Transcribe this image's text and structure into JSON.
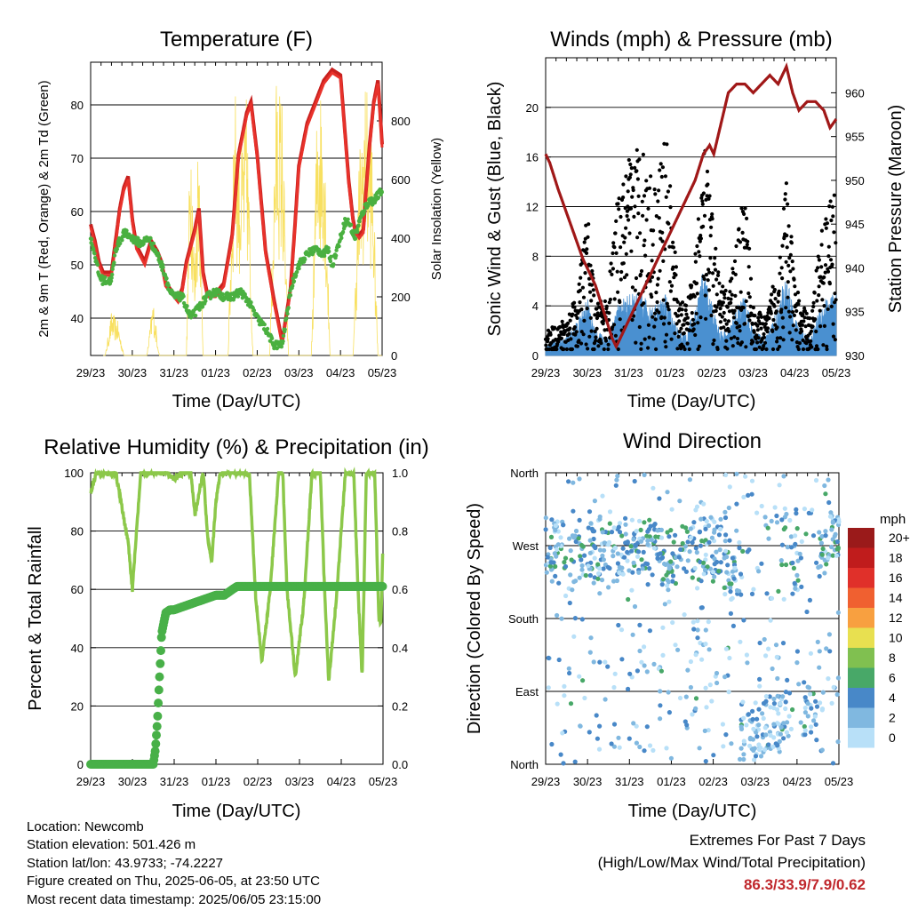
{
  "footer": {
    "location": "Location: Newcomb",
    "elevation": "Station elevation: 501.426 m",
    "latlon": "Station lat/lon: 43.9733; -74.2227",
    "created": "Figure created on Thu, 2025-06-05, at 23:50 UTC",
    "recent": "Most recent data timestamp: 2025/06/05 23:15:00",
    "extremes_title": "Extremes For Past 7 Days",
    "extremes_subtitle": "(High/Low/Max Wind/Total Precipitation)",
    "extremes_values": "86.3/33.9/7.9/0.62"
  },
  "colors": {
    "temp2m": "#e8322b",
    "temp9m": "#c8201e",
    "dewpoint": "#4ab040",
    "solar": "#f8e060",
    "gust": "#000000",
    "wind": "#4a90d0",
    "pressure": "#a01818",
    "rh": "#8cc84a",
    "precip": "#48b048",
    "extremes": "#c0282d"
  },
  "chart_data": [
    {
      "type": "line",
      "title": "Temperature (F)",
      "xlabel": "Time (Day/UTC)",
      "ylabel": "2m & 9m T (Red, Orange) & 2m Td (Green)",
      "y2label": "Solar Insolation (Yellow)",
      "xticks": [
        "29/23",
        "30/23",
        "31/23",
        "01/23",
        "02/23",
        "03/23",
        "04/23",
        "05/23"
      ],
      "xlim": [
        0,
        7
      ],
      "ylim": [
        33,
        88
      ],
      "yticks": [
        40,
        50,
        60,
        70,
        80
      ],
      "y2lim": [
        0,
        1000
      ],
      "y2ticks": [
        0,
        200,
        400,
        600,
        800
      ],
      "grid": true,
      "series": [
        {
          "key": "temperature",
          "x": [
            0,
            0.1,
            0.2,
            0.3,
            0.5,
            0.6,
            0.7,
            0.8,
            0.9,
            1.0,
            1.1,
            1.3,
            1.45,
            1.6,
            1.7,
            1.8,
            1.9,
            2.0,
            2.1,
            2.2,
            2.3,
            2.5,
            2.6,
            2.7,
            2.8,
            3.0,
            3.2,
            3.4,
            3.55,
            3.75,
            3.85,
            4.0,
            4.2,
            4.4,
            4.6,
            4.8,
            4.9,
            5.0,
            5.2,
            5.4,
            5.6,
            5.8,
            6.0,
            6.1,
            6.2,
            6.3,
            6.35,
            6.45,
            6.55,
            6.6,
            6.7,
            6.8,
            6.9,
            7.0
          ],
          "y": [
            57,
            54,
            50,
            48,
            48,
            54,
            60,
            64,
            66,
            58,
            53,
            50,
            54,
            52,
            50,
            46,
            45,
            44,
            43,
            45,
            50,
            56,
            60,
            48,
            44,
            44,
            46,
            55,
            70,
            78,
            80,
            70,
            52,
            43,
            35,
            45,
            56,
            68,
            76,
            80,
            84,
            86,
            85,
            75,
            65,
            58,
            56,
            55,
            56,
            62,
            72,
            80,
            84,
            72
          ]
        },
        {
          "key": "dewpoint",
          "x": [
            0,
            0.1,
            0.2,
            0.3,
            0.5,
            0.6,
            0.8,
            1.0,
            1.2,
            1.4,
            1.6,
            1.8,
            1.9,
            2.0,
            2.2,
            2.3,
            2.4,
            2.5,
            2.6,
            2.8,
            3.0,
            3.2,
            3.4,
            3.6,
            3.8,
            4.0,
            4.2,
            4.4,
            4.6,
            4.8,
            4.9,
            5.0,
            5.2,
            5.4,
            5.6,
            5.7,
            5.8,
            6.0,
            6.1,
            6.2,
            6.3,
            6.35,
            6.45,
            6.6,
            6.7,
            6.8,
            6.9,
            7.0
          ],
          "y": [
            55,
            52,
            48,
            47,
            47,
            53,
            56,
            55,
            54,
            55,
            52,
            48,
            45,
            44,
            44,
            42,
            40,
            41,
            42,
            44,
            45,
            44,
            44,
            45,
            43,
            40,
            38,
            35,
            35,
            45,
            48,
            50,
            52,
            53,
            52,
            53,
            50,
            55,
            58,
            58,
            56,
            55,
            58,
            61,
            62,
            62,
            63,
            64
          ]
        },
        {
          "key": "solar",
          "x": [
            0.35,
            0.5,
            0.65,
            0.8,
            1.35,
            1.5,
            1.65,
            2.3,
            2.4,
            2.5,
            2.6,
            2.7,
            3.3,
            3.45,
            3.6,
            3.75,
            3.9,
            4.3,
            4.45,
            4.6,
            4.75,
            5.3,
            5.45,
            5.6,
            5.75,
            6.3,
            6.45,
            6.6,
            6.75,
            6.9
          ],
          "y": [
            0,
            150,
            120,
            0,
            0,
            200,
            0,
            0,
            900,
            300,
            900,
            0,
            0,
            950,
            700,
            900,
            0,
            0,
            950,
            900,
            0,
            0,
            950,
            900,
            0,
            0,
            700,
            950,
            800,
            0
          ]
        }
      ]
    },
    {
      "type": "scatter",
      "title": "Winds (mph) & Pressure (mb)",
      "xlabel": "Time (Day/UTC)",
      "ylabel": "Sonic Wind & Gust (Blue, Black)",
      "y2label": "Station Pressure (Maroon)",
      "xticks": [
        "29/23",
        "30/23",
        "31/23",
        "01/23",
        "02/23",
        "03/23",
        "04/23",
        "05/23"
      ],
      "xlim": [
        0,
        7
      ],
      "ylim": [
        0,
        24
      ],
      "yticks": [
        0,
        4,
        8,
        12,
        16,
        20
      ],
      "y2lim": [
        930,
        964
      ],
      "y2ticks": [
        930,
        935,
        940,
        945,
        950,
        955,
        960
      ],
      "grid": true,
      "series": [
        {
          "key": "gust_envelope",
          "x": [
            0,
            0.5,
            0.8,
            1.0,
            1.2,
            1.5,
            1.7,
            2.0,
            2.3,
            2.6,
            2.9,
            3.2,
            3.4,
            3.6,
            3.8,
            4.2,
            4.4,
            4.6,
            4.8,
            5.0,
            5.3,
            5.6,
            5.8,
            6.0,
            6.2,
            6.4,
            6.6,
            6.8,
            7.0
          ],
          "y": [
            2,
            3,
            6,
            12,
            4,
            5,
            12,
            16,
            18,
            14,
            18,
            5,
            4,
            8,
            18,
            6,
            5,
            10,
            14,
            4,
            3,
            8,
            15,
            6,
            4,
            3,
            10,
            12,
            14
          ]
        },
        {
          "key": "wind_envelope",
          "x": [
            0,
            0.5,
            0.8,
            1.0,
            1.2,
            1.5,
            1.7,
            2.0,
            2.3,
            2.6,
            2.9,
            3.2,
            3.4,
            3.6,
            3.8,
            4.2,
            4.4,
            4.6,
            4.8,
            5.0,
            5.3,
            5.6,
            5.8,
            6.0,
            6.2,
            6.4,
            6.6,
            6.8,
            7.0
          ],
          "y": [
            1,
            1.5,
            3,
            5,
            2,
            1.5,
            4,
            5,
            5,
            4,
            5,
            2,
            2,
            4,
            7,
            2,
            2,
            4,
            5,
            2,
            1.5,
            4,
            7,
            3,
            2,
            1.5,
            4,
            5,
            5
          ]
        },
        {
          "key": "pressure",
          "x": [
            0,
            0.1,
            0.3,
            0.6,
            0.9,
            1.2,
            1.4,
            1.6,
            1.7,
            1.8,
            2.1,
            2.4,
            2.7,
            3.0,
            3.3,
            3.6,
            3.8,
            3.95,
            4.05,
            4.2,
            4.4,
            4.6,
            4.8,
            5.0,
            5.2,
            5.4,
            5.6,
            5.8,
            5.95,
            6.1,
            6.3,
            6.5,
            6.7,
            6.85,
            7.0
          ],
          "y": [
            953,
            952,
            949,
            945,
            941,
            938,
            935,
            932,
            931,
            932,
            935,
            938,
            941,
            944,
            947,
            950,
            953,
            954,
            953,
            956,
            960,
            961,
            961,
            960,
            961,
            962,
            961,
            963,
            960,
            958,
            959,
            959,
            958,
            956,
            957
          ]
        }
      ]
    },
    {
      "type": "line",
      "title": "Relative Humidity (%) & Precipitation (in)",
      "xlabel": "Time (Day/UTC)",
      "ylabel": "Percent & Total Rainfall",
      "xticks": [
        "29/23",
        "30/23",
        "31/23",
        "01/23",
        "02/23",
        "03/23",
        "04/23",
        "05/23"
      ],
      "xlim": [
        0,
        7
      ],
      "ylim": [
        0,
        100
      ],
      "yticks": [
        0,
        20,
        40,
        60,
        80,
        100
      ],
      "y2lim": [
        0,
        1.0
      ],
      "y2ticks": [
        "0.0",
        "0.2",
        "0.4",
        "0.6",
        "0.8",
        "1.0"
      ],
      "grid": true,
      "series": [
        {
          "key": "rh",
          "x": [
            0,
            0.05,
            0.15,
            0.3,
            0.6,
            0.8,
            0.9,
            1.0,
            1.1,
            1.2,
            1.3,
            1.5,
            1.8,
            2.0,
            2.2,
            2.4,
            2.5,
            2.6,
            2.7,
            2.8,
            2.9,
            3.0,
            3.1,
            3.2,
            3.4,
            3.6,
            3.8,
            3.95,
            4.1,
            4.3,
            4.5,
            4.6,
            4.7,
            4.9,
            5.1,
            5.3,
            5.5,
            5.6,
            5.7,
            5.9,
            6.1,
            6.3,
            6.4,
            6.5,
            6.6,
            6.8,
            6.9,
            6.95,
            7.0
          ],
          "y": [
            93,
            96,
            100,
            100,
            100,
            84,
            76,
            60,
            80,
            100,
            100,
            100,
            100,
            98,
            100,
            100,
            85,
            94,
            100,
            78,
            70,
            90,
            100,
            100,
            100,
            100,
            100,
            58,
            35,
            60,
            100,
            100,
            60,
            30,
            55,
            100,
            100,
            60,
            28,
            60,
            100,
            100,
            60,
            30,
            100,
            100,
            50,
            48,
            76
          ]
        },
        {
          "key": "precip",
          "x": [
            0,
            0.5,
            1.0,
            1.3,
            1.5,
            1.55,
            1.6,
            1.65,
            1.7,
            1.8,
            1.9,
            2.0,
            2.2,
            2.4,
            2.6,
            2.8,
            3.0,
            3.2,
            3.4,
            3.5,
            3.6,
            7.0
          ],
          "y": [
            0,
            0,
            0,
            0,
            0,
            0.05,
            0.15,
            0.3,
            0.45,
            0.52,
            0.53,
            0.53,
            0.54,
            0.55,
            0.56,
            0.57,
            0.58,
            0.58,
            0.6,
            0.61,
            0.61,
            0.61
          ]
        }
      ]
    },
    {
      "type": "scatter",
      "title": "Wind Direction",
      "xlabel": "Time (Day/UTC)",
      "ylabel": "Direction (Colored By Speed)",
      "xticks": [
        "29/23",
        "30/23",
        "31/23",
        "01/23",
        "02/23",
        "03/23",
        "04/23",
        "05/23"
      ],
      "xlim": [
        0,
        7
      ],
      "ylim": [
        0,
        360
      ],
      "yticks": [
        "North",
        "East",
        "South",
        "West",
        "North"
      ],
      "grid": true,
      "legend": {
        "title": "mph",
        "placement": "right",
        "labels": [
          "20+",
          "18",
          "16",
          "14",
          "12",
          "10",
          "8",
          "6",
          "4",
          "2",
          "0"
        ],
        "colors": [
          "#9a1a1a",
          "#c01c1c",
          "#e0302a",
          "#f06030",
          "#f8a040",
          "#e8e050",
          "#80c050",
          "#48a868",
          "#4888c8",
          "#80b8e0",
          "#b8e0f8"
        ]
      },
      "series": [
        {
          "key": "direction_clusters",
          "x": [
            0.3,
            0.7,
            1.0,
            1.5,
            2.0,
            2.5,
            2.8,
            3.5,
            3.9,
            4.5,
            4.8,
            5.5,
            5.7,
            6.0,
            6.3,
            6.6,
            6.9
          ],
          "y": [
            270,
            250,
            265,
            260,
            270,
            265,
            255,
            260,
            270,
            245,
            40,
            50,
            60,
            250,
            70,
            255,
            290
          ],
          "speed": [
            1,
            3,
            2,
            3,
            4,
            3,
            5,
            2,
            4,
            2,
            3,
            3,
            4,
            5,
            2,
            3,
            4
          ]
        }
      ]
    }
  ]
}
